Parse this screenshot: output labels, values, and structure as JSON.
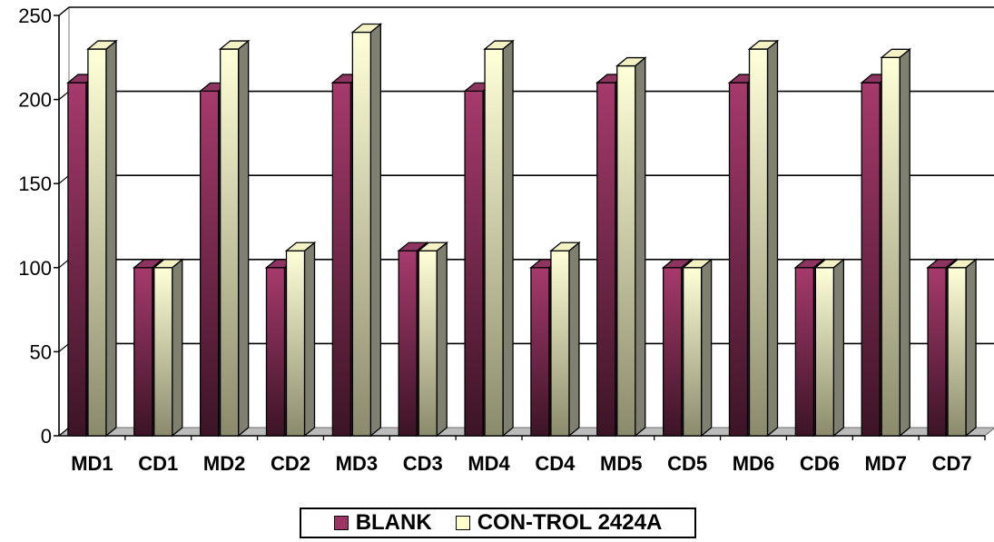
{
  "chart_data": {
    "type": "bar",
    "categories": [
      "MD1",
      "CD1",
      "MD2",
      "CD2",
      "MD3",
      "CD3",
      "MD4",
      "CD4",
      "MD5",
      "CD5",
      "MD6",
      "CD6",
      "MD7",
      "CD7"
    ],
    "series": [
      {
        "name": "BLANK",
        "color": "#9c3466",
        "values": [
          210,
          100,
          205,
          100,
          210,
          110,
          205,
          100,
          210,
          100,
          210,
          100,
          210,
          100
        ]
      },
      {
        "name": "CON-TROL 2424A",
        "color": "#ffffcc",
        "values": [
          230,
          100,
          230,
          110,
          240,
          110,
          230,
          110,
          220,
          100,
          230,
          100,
          225,
          100
        ]
      }
    ],
    "yticks": [
      "0",
      "50",
      "100",
      "150",
      "200",
      "250"
    ],
    "ylim": [
      0,
      250
    ],
    "grid": true,
    "legend_position": "bottom",
    "title": "",
    "xlabel": "",
    "ylabel": ""
  }
}
